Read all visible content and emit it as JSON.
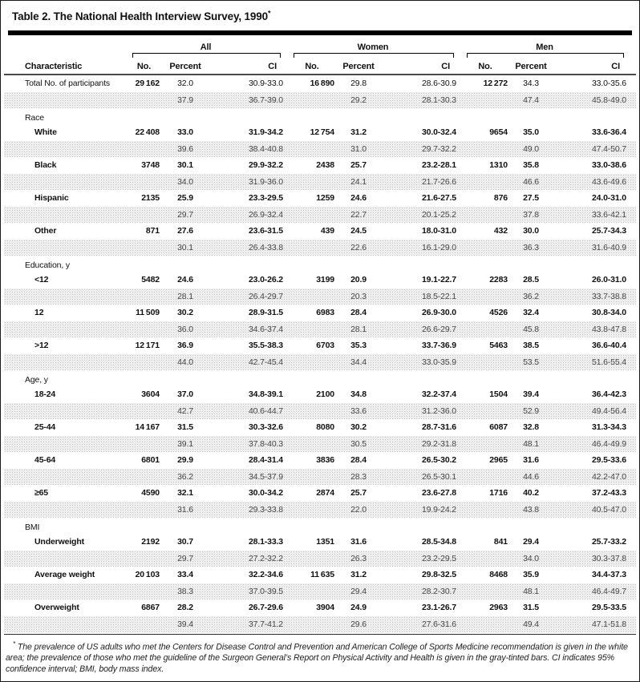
{
  "page": {
    "title": "Table 2. The National Health Interview Survey, 1990",
    "title_marker": "*"
  },
  "table": {
    "characteristic_header": "Characteristic",
    "groups": [
      {
        "key": "all",
        "label": "All"
      },
      {
        "key": "women",
        "label": "Women"
      },
      {
        "key": "men",
        "label": "Men"
      }
    ],
    "subcols": {
      "no": "No.",
      "percent": "Percent",
      "ci": "CI"
    },
    "rows": [
      {
        "type": "data",
        "label": "Total No. of participants",
        "indent": false,
        "bold": false,
        "bold_no": true,
        "white": [
          "29 162",
          "32.0",
          "30.9-33.0",
          "16 890",
          "29.8",
          "28.6-30.9",
          "12 272",
          "34.3",
          "33.0-35.6"
        ],
        "gray": [
          "37.9",
          "36.7-39.0",
          "29.2",
          "28.1-30.3",
          "47.4",
          "45.8-49.0"
        ]
      },
      {
        "type": "section",
        "label": "Race"
      },
      {
        "type": "data",
        "label": "White",
        "indent": true,
        "bold": true,
        "white": [
          "22 408",
          "33.0",
          "31.9-34.2",
          "12 754",
          "31.2",
          "30.0-32.4",
          "9654",
          "35.0",
          "33.6-36.4"
        ],
        "gray": [
          "39.6",
          "38.4-40.8",
          "31.0",
          "29.7-32.2",
          "49.0",
          "47.4-50.7"
        ]
      },
      {
        "type": "data",
        "label": "Black",
        "indent": true,
        "bold": true,
        "white": [
          "3748",
          "30.1",
          "29.9-32.2",
          "2438",
          "25.7",
          "23.2-28.1",
          "1310",
          "35.8",
          "33.0-38.6"
        ],
        "gray": [
          "34.0",
          "31.9-36.0",
          "24.1",
          "21.7-26.6",
          "46.6",
          "43.6-49.6"
        ]
      },
      {
        "type": "data",
        "label": "Hispanic",
        "indent": true,
        "bold": true,
        "white": [
          "2135",
          "25.9",
          "23.3-29.5",
          "1259",
          "24.6",
          "21.6-27.5",
          "876",
          "27.5",
          "24.0-31.0"
        ],
        "gray": [
          "29.7",
          "26.9-32.4",
          "22.7",
          "20.1-25.2",
          "37.8",
          "33.6-42.1"
        ]
      },
      {
        "type": "data",
        "label": "Other",
        "indent": true,
        "bold": true,
        "white": [
          "871",
          "27.6",
          "23.6-31.5",
          "439",
          "24.5",
          "18.0-31.0",
          "432",
          "30.0",
          "25.7-34.3"
        ],
        "gray": [
          "30.1",
          "26.4-33.8",
          "22.6",
          "16.1-29.0",
          "36.3",
          "31.6-40.9"
        ]
      },
      {
        "type": "section",
        "label": "Education, y"
      },
      {
        "type": "data",
        "label": "<12",
        "indent": true,
        "bold": true,
        "white": [
          "5482",
          "24.6",
          "23.0-26.2",
          "3199",
          "20.9",
          "19.1-22.7",
          "2283",
          "28.5",
          "26.0-31.0"
        ],
        "gray": [
          "28.1",
          "26.4-29.7",
          "20.3",
          "18.5-22.1",
          "36.2",
          "33.7-38.8"
        ]
      },
      {
        "type": "data",
        "label": "12",
        "indent": true,
        "bold": true,
        "white": [
          "11 509",
          "30.2",
          "28.9-31.5",
          "6983",
          "28.4",
          "26.9-30.0",
          "4526",
          "32.4",
          "30.8-34.0"
        ],
        "gray": [
          "36.0",
          "34.6-37.4",
          "28.1",
          "26.6-29.7",
          "45.8",
          "43.8-47.8"
        ]
      },
      {
        "type": "data",
        "label": ">12",
        "indent": true,
        "bold": true,
        "white": [
          "12 171",
          "36.9",
          "35.5-38.3",
          "6703",
          "35.3",
          "33.7-36.9",
          "5463",
          "38.5",
          "36.6-40.4"
        ],
        "gray": [
          "44.0",
          "42.7-45.4",
          "34.4",
          "33.0-35.9",
          "53.5",
          "51.6-55.4"
        ]
      },
      {
        "type": "section",
        "label": "Age, y"
      },
      {
        "type": "data",
        "label": "18-24",
        "indent": true,
        "bold": true,
        "white": [
          "3604",
          "37.0",
          "34.8-39.1",
          "2100",
          "34.8",
          "32.2-37.4",
          "1504",
          "39.4",
          "36.4-42.3"
        ],
        "gray": [
          "42.7",
          "40.6-44.7",
          "33.6",
          "31.2-36.0",
          "52.9",
          "49.4-56.4"
        ]
      },
      {
        "type": "data",
        "label": "25-44",
        "indent": true,
        "bold": true,
        "white": [
          "14 167",
          "31.5",
          "30.3-32.6",
          "8080",
          "30.2",
          "28.7-31.6",
          "6087",
          "32.8",
          "31.3-34.3"
        ],
        "gray": [
          "39.1",
          "37.8-40.3",
          "30.5",
          "29.2-31.8",
          "48.1",
          "46.4-49.9"
        ]
      },
      {
        "type": "data",
        "label": "45-64",
        "indent": true,
        "bold": true,
        "white": [
          "6801",
          "29.9",
          "28.4-31.4",
          "3836",
          "28.4",
          "26.5-30.2",
          "2965",
          "31.6",
          "29.5-33.6"
        ],
        "gray": [
          "36.2",
          "34.5-37.9",
          "28.3",
          "26.5-30.1",
          "44.6",
          "42.2-47.0"
        ]
      },
      {
        "type": "data",
        "label": "≥65",
        "indent": true,
        "bold": true,
        "white": [
          "4590",
          "32.1",
          "30.0-34.2",
          "2874",
          "25.7",
          "23.6-27.8",
          "1716",
          "40.2",
          "37.2-43.3"
        ],
        "gray": [
          "31.6",
          "29.3-33.8",
          "22.0",
          "19.9-24.2",
          "43.8",
          "40.5-47.0"
        ]
      },
      {
        "type": "section",
        "label": "BMI"
      },
      {
        "type": "data",
        "label": "Underweight",
        "indent": true,
        "bold": true,
        "white": [
          "2192",
          "30.7",
          "28.1-33.3",
          "1351",
          "31.6",
          "28.5-34.8",
          "841",
          "29.4",
          "25.7-33.2"
        ],
        "gray": [
          "29.7",
          "27.2-32.2",
          "26.3",
          "23.2-29.5",
          "34.0",
          "30.3-37.8"
        ]
      },
      {
        "type": "data",
        "label": "Average weight",
        "indent": true,
        "bold": true,
        "white": [
          "20 103",
          "33.4",
          "32.2-34.6",
          "11 635",
          "31.2",
          "29.8-32.5",
          "8468",
          "35.9",
          "34.4-37.3"
        ],
        "gray": [
          "38.3",
          "37.0-39.5",
          "29.4",
          "28.2-30.7",
          "48.1",
          "46.4-49.7"
        ]
      },
      {
        "type": "data",
        "label": "Overweight",
        "indent": true,
        "bold": true,
        "white": [
          "6867",
          "28.2",
          "26.7-29.6",
          "3904",
          "24.9",
          "23.1-26.7",
          "2963",
          "31.5",
          "29.5-33.5"
        ],
        "gray": [
          "39.4",
          "37.7-41.2",
          "29.6",
          "27.6-31.6",
          "49.4",
          "47.1-51.8"
        ]
      }
    ]
  },
  "footnote": {
    "marker": "*",
    "text": "The prevalence of US adults who met the Centers for Disease Control and Prevention and American College of Sports Medicine recommendation is given in the white area; the prevalence of those who met the guideline of the Surgeon General’s Report on Physical Activity and Health is given in the gray-tinted bars. CI indicates 95% confidence interval; BMI, body mass index."
  },
  "colors": {
    "rule_heavy": "#000000",
    "rule_medium": "#4a4a4a",
    "stipple_dot": "#c3c3c3",
    "text": "#111111",
    "gray_row_text": "#454545"
  }
}
